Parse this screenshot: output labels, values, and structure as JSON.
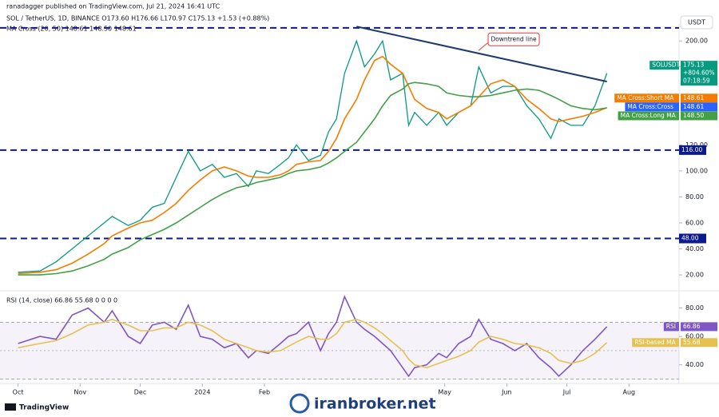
{
  "header": {
    "publisher": "ranadagger published on TradingView.com, Jul 21, 2024 16:41 UTC",
    "symbol_line": "SOL / TetherUS, 1D, BINANCE  O173.60  H176.66  L170.97  C175.13  +1.53 (+0.88%)",
    "ma_line": "MA Cross (20, 50)  148.61  148.50  148.61",
    "rsi_line": "RSI (14, close)  66.86  55.68  0  0  0  0",
    "currency": "USDT"
  },
  "footer": {
    "brand": "TradingView",
    "watermark": "iranbroker.net"
  },
  "chart_data": [
    {
      "type": "line",
      "x": [
        0,
        11,
        19,
        27,
        35,
        43,
        47,
        55,
        61,
        67,
        73,
        79,
        85,
        91,
        97,
        103,
        109,
        115,
        119,
        125,
        131,
        135,
        139,
        145,
        151,
        155,
        159,
        163,
        169,
        173,
        178,
        182,
        186,
        192,
        195,
        198,
        204,
        210,
        214,
        220,
        226,
        230,
        236,
        242,
        248,
        254,
        260,
        266,
        270,
        276,
        282,
        288,
        294
      ],
      "xlim": [
        -9,
        330
      ],
      "xticks": [
        {
          "value": 0,
          "label": "Oct"
        },
        {
          "value": 31,
          "label": "Nov"
        },
        {
          "value": 61,
          "label": "Dec"
        },
        {
          "value": 92,
          "label": "2024"
        },
        {
          "value": 123,
          "label": "Feb"
        },
        {
          "value": 213,
          "label": "May"
        },
        {
          "value": 244,
          "label": "Jun"
        },
        {
          "value": 274,
          "label": "Jul"
        },
        {
          "value": 305,
          "label": "Aug"
        }
      ],
      "ylim": [
        9,
        213
      ],
      "yticks": [
        {
          "value": 20,
          "label": "20.00"
        },
        {
          "value": 40,
          "label": "40.00"
        },
        {
          "value": 60,
          "label": "60.00"
        },
        {
          "value": 80,
          "label": "80.00"
        },
        {
          "value": 100,
          "label": "100.00"
        },
        {
          "value": 120,
          "label": "120.00"
        },
        {
          "value": 180,
          "label": "180.00"
        },
        {
          "value": 200,
          "label": "200.00"
        }
      ],
      "series": [
        {
          "name": "SOLUSDT",
          "color": "#089981",
          "values": [
            22,
            23,
            30,
            40,
            50,
            60,
            65,
            58,
            62,
            72,
            75,
            95,
            115,
            100,
            105,
            95,
            98,
            88,
            100,
            98,
            105,
            110,
            120,
            108,
            112,
            130,
            140,
            175,
            200,
            180,
            190,
            200,
            170,
            175,
            135,
            145,
            135,
            145,
            135,
            145,
            150,
            180,
            160,
            165,
            165,
            150,
            140,
            125,
            140,
            135,
            135,
            150,
            175.13
          ],
          "tag": {
            "value": 175.13,
            "label": "175.13"
          },
          "tag_extra": [
            "+804.60%",
            "07:18:59"
          ]
        },
        {
          "name": "MA Cross:Short MA",
          "color": "#f57c00",
          "values": [
            21,
            22,
            24,
            29,
            36,
            44,
            50,
            56,
            60,
            62,
            68,
            75,
            85,
            93,
            100,
            103,
            100,
            96,
            95,
            95,
            97,
            100,
            105,
            107,
            108,
            115,
            125,
            140,
            155,
            170,
            185,
            188,
            182,
            175,
            165,
            155,
            148,
            145,
            140,
            145,
            150,
            157,
            167,
            170,
            165,
            155,
            148,
            140,
            138,
            140,
            142,
            145,
            148.61
          ],
          "tag": {
            "value": 148.61,
            "label": "148.61"
          }
        },
        {
          "name": "MA Cross:Long MA",
          "color": "#43a047",
          "values": [
            20,
            20,
            21,
            23,
            27,
            32,
            36,
            41,
            47,
            51,
            55,
            60,
            66,
            72,
            78,
            83,
            87,
            89,
            91,
            93,
            95,
            98,
            100,
            101,
            103,
            106,
            110,
            115,
            122,
            130,
            140,
            150,
            158,
            163,
            167,
            168,
            167,
            165,
            160,
            158,
            157,
            157,
            158,
            160,
            162,
            163,
            162,
            158,
            155,
            150,
            148,
            147,
            148.5
          ],
          "tag": {
            "value": 148.5,
            "label": "148.50"
          }
        }
      ],
      "markers": [
        {
          "name": "MA Cross:Cross",
          "color": "#2962ff",
          "tag": {
            "value": 148.61,
            "label": "148.61"
          }
        }
      ],
      "levels": [
        {
          "value": 210
        },
        {
          "value": 116,
          "label": "116.00"
        },
        {
          "value": 48,
          "label": "48.00"
        }
      ],
      "level_color": "#0d1a8c",
      "trendline": {
        "x": [
          169,
          294
        ],
        "y": [
          211,
          168.7
        ],
        "label": "Downtrend line",
        "color": "#1e3a6e"
      }
    },
    {
      "type": "line",
      "ylim": [
        28,
        91
      ],
      "yticks": [
        {
          "value": 40,
          "label": "40.00"
        },
        {
          "value": 60,
          "label": "60.00"
        },
        {
          "value": 80,
          "label": "80.00"
        }
      ],
      "band": [
        30,
        70
      ],
      "midline": 50,
      "series": [
        {
          "name": "RSI",
          "color": "#7e57c2",
          "values": [
            55,
            60,
            58,
            75,
            80,
            70,
            78,
            60,
            55,
            68,
            70,
            65,
            82,
            60,
            58,
            52,
            55,
            45,
            50,
            48,
            55,
            60,
            62,
            70,
            50,
            62,
            70,
            88,
            70,
            65,
            60,
            55,
            50,
            38,
            32,
            38,
            40,
            48,
            45,
            55,
            60,
            72,
            58,
            55,
            50,
            55,
            45,
            38,
            32,
            40,
            50,
            58,
            66.86
          ],
          "tag": {
            "value": 66.86,
            "label": "66.86"
          }
        },
        {
          "name": "RSI-based MA",
          "color": "#e6c14f",
          "values": [
            52,
            55,
            57,
            62,
            68,
            70,
            72,
            68,
            64,
            64,
            66,
            66,
            70,
            68,
            64,
            58,
            55,
            52,
            50,
            49,
            50,
            53,
            56,
            60,
            58,
            58,
            62,
            70,
            72,
            70,
            66,
            62,
            57,
            50,
            44,
            40,
            38,
            41,
            43,
            46,
            50,
            56,
            60,
            58,
            55,
            54,
            52,
            48,
            43,
            41,
            43,
            48,
            55.68
          ],
          "tag": {
            "value": 55.68,
            "label": "55.68"
          }
        }
      ]
    }
  ]
}
